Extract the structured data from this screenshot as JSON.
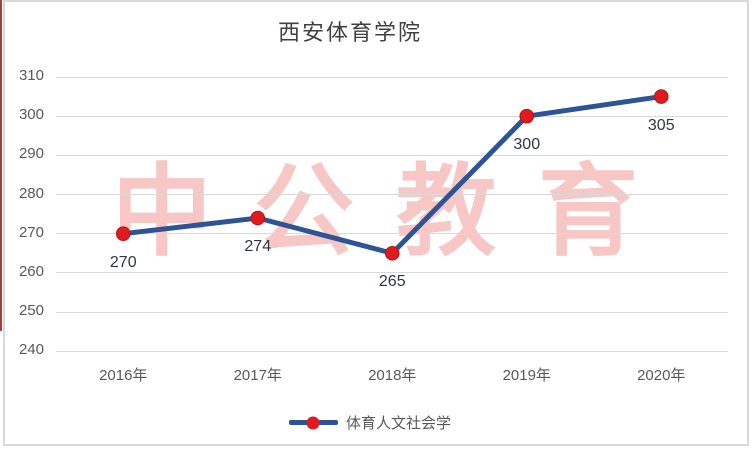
{
  "title": "西安体育学院",
  "watermark": {
    "text": "中公教育",
    "color": "#f7c7c6"
  },
  "colors": {
    "accent_red": "#a13f3f",
    "frame_border": "#d9d9d9",
    "gridline": "#d9d9d9",
    "axis_text": "#595959",
    "title_text": "#404040",
    "data_label_text": "#2c3648"
  },
  "chart_data": {
    "type": "line",
    "title": "西安体育学院",
    "categories": [
      "2016年",
      "2017年",
      "2018年",
      "2019年",
      "2020年"
    ],
    "series": [
      {
        "name": "体育人文社会学",
        "values": [
          270,
          274,
          265,
          300,
          305
        ],
        "line_color": "#2f5493",
        "marker_color": "#df1b1e",
        "marker_edge_color": "#b71418"
      }
    ],
    "xlabel": "",
    "ylabel": "",
    "ylim": [
      240,
      310
    ],
    "yticks": [
      310,
      300,
      290,
      280,
      270,
      260,
      250,
      240
    ],
    "grid": true,
    "legend_position": "bottom"
  }
}
